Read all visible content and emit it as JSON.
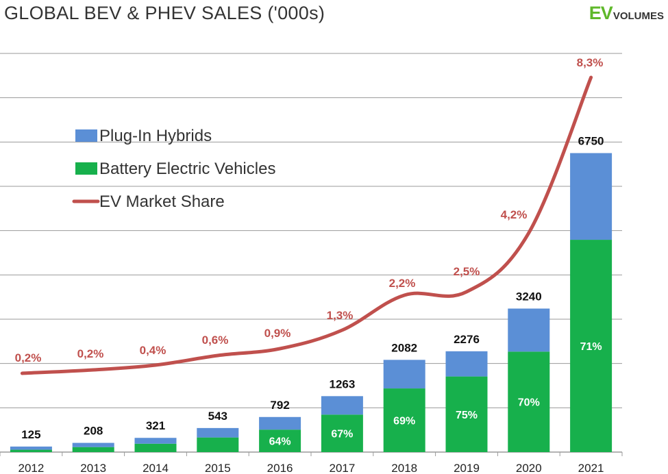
{
  "header": {
    "title": "GLOBAL BEV & PHEV SALES ('000s)",
    "logo_ev": "EV",
    "logo_volumes": "VOLUMES"
  },
  "colors": {
    "phev": "#5b8fd6",
    "bev": "#17b04c",
    "share_line": "#c0504d",
    "grid": "#9a9a9a",
    "logo": "#5fb82a"
  },
  "chart_data": {
    "type": "bar",
    "title": "GLOBAL BEV & PHEV SALES ('000s)",
    "stacked": true,
    "xlabel": "",
    "ylabel": "",
    "categories": [
      "2012",
      "2013",
      "2014",
      "2015",
      "2016",
      "2017",
      "2018",
      "2019",
      "2020",
      "2021"
    ],
    "totals": [
      125,
      208,
      321,
      543,
      792,
      1263,
      2082,
      2276,
      3240,
      6750
    ],
    "series": [
      {
        "name": "Battery Electric Vehicles",
        "values": [
          53,
          113,
          189,
          330,
          507,
          846,
          1437,
          1707,
          2268,
          4793
        ]
      },
      {
        "name": "Plug-In Hybrids",
        "values": [
          72,
          95,
          132,
          213,
          285,
          417,
          645,
          569,
          972,
          1957
        ]
      }
    ],
    "bev_share_labels": [
      "",
      "",
      "",
      "",
      "64%",
      "67%",
      "69%",
      "75%",
      "70%",
      "71%"
    ],
    "line_series": {
      "name": "EV Market Share",
      "values": [
        0.2,
        0.2,
        0.4,
        0.6,
        0.9,
        1.3,
        2.2,
        2.5,
        4.2,
        8.3
      ],
      "labels": [
        "0,2%",
        "0,2%",
        "0,4%",
        "0,6%",
        "0,9%",
        "1,3%",
        "2,2%",
        "2,5%",
        "4,2%",
        "8,3%"
      ]
    },
    "legend": [
      "Plug-In Hybrids",
      "Battery Electric Vehicles",
      "EV Market Share"
    ],
    "legend_position": "top-left",
    "grid": true,
    "ylim": [
      0,
      9000
    ],
    "y_ticks_shown": false
  }
}
